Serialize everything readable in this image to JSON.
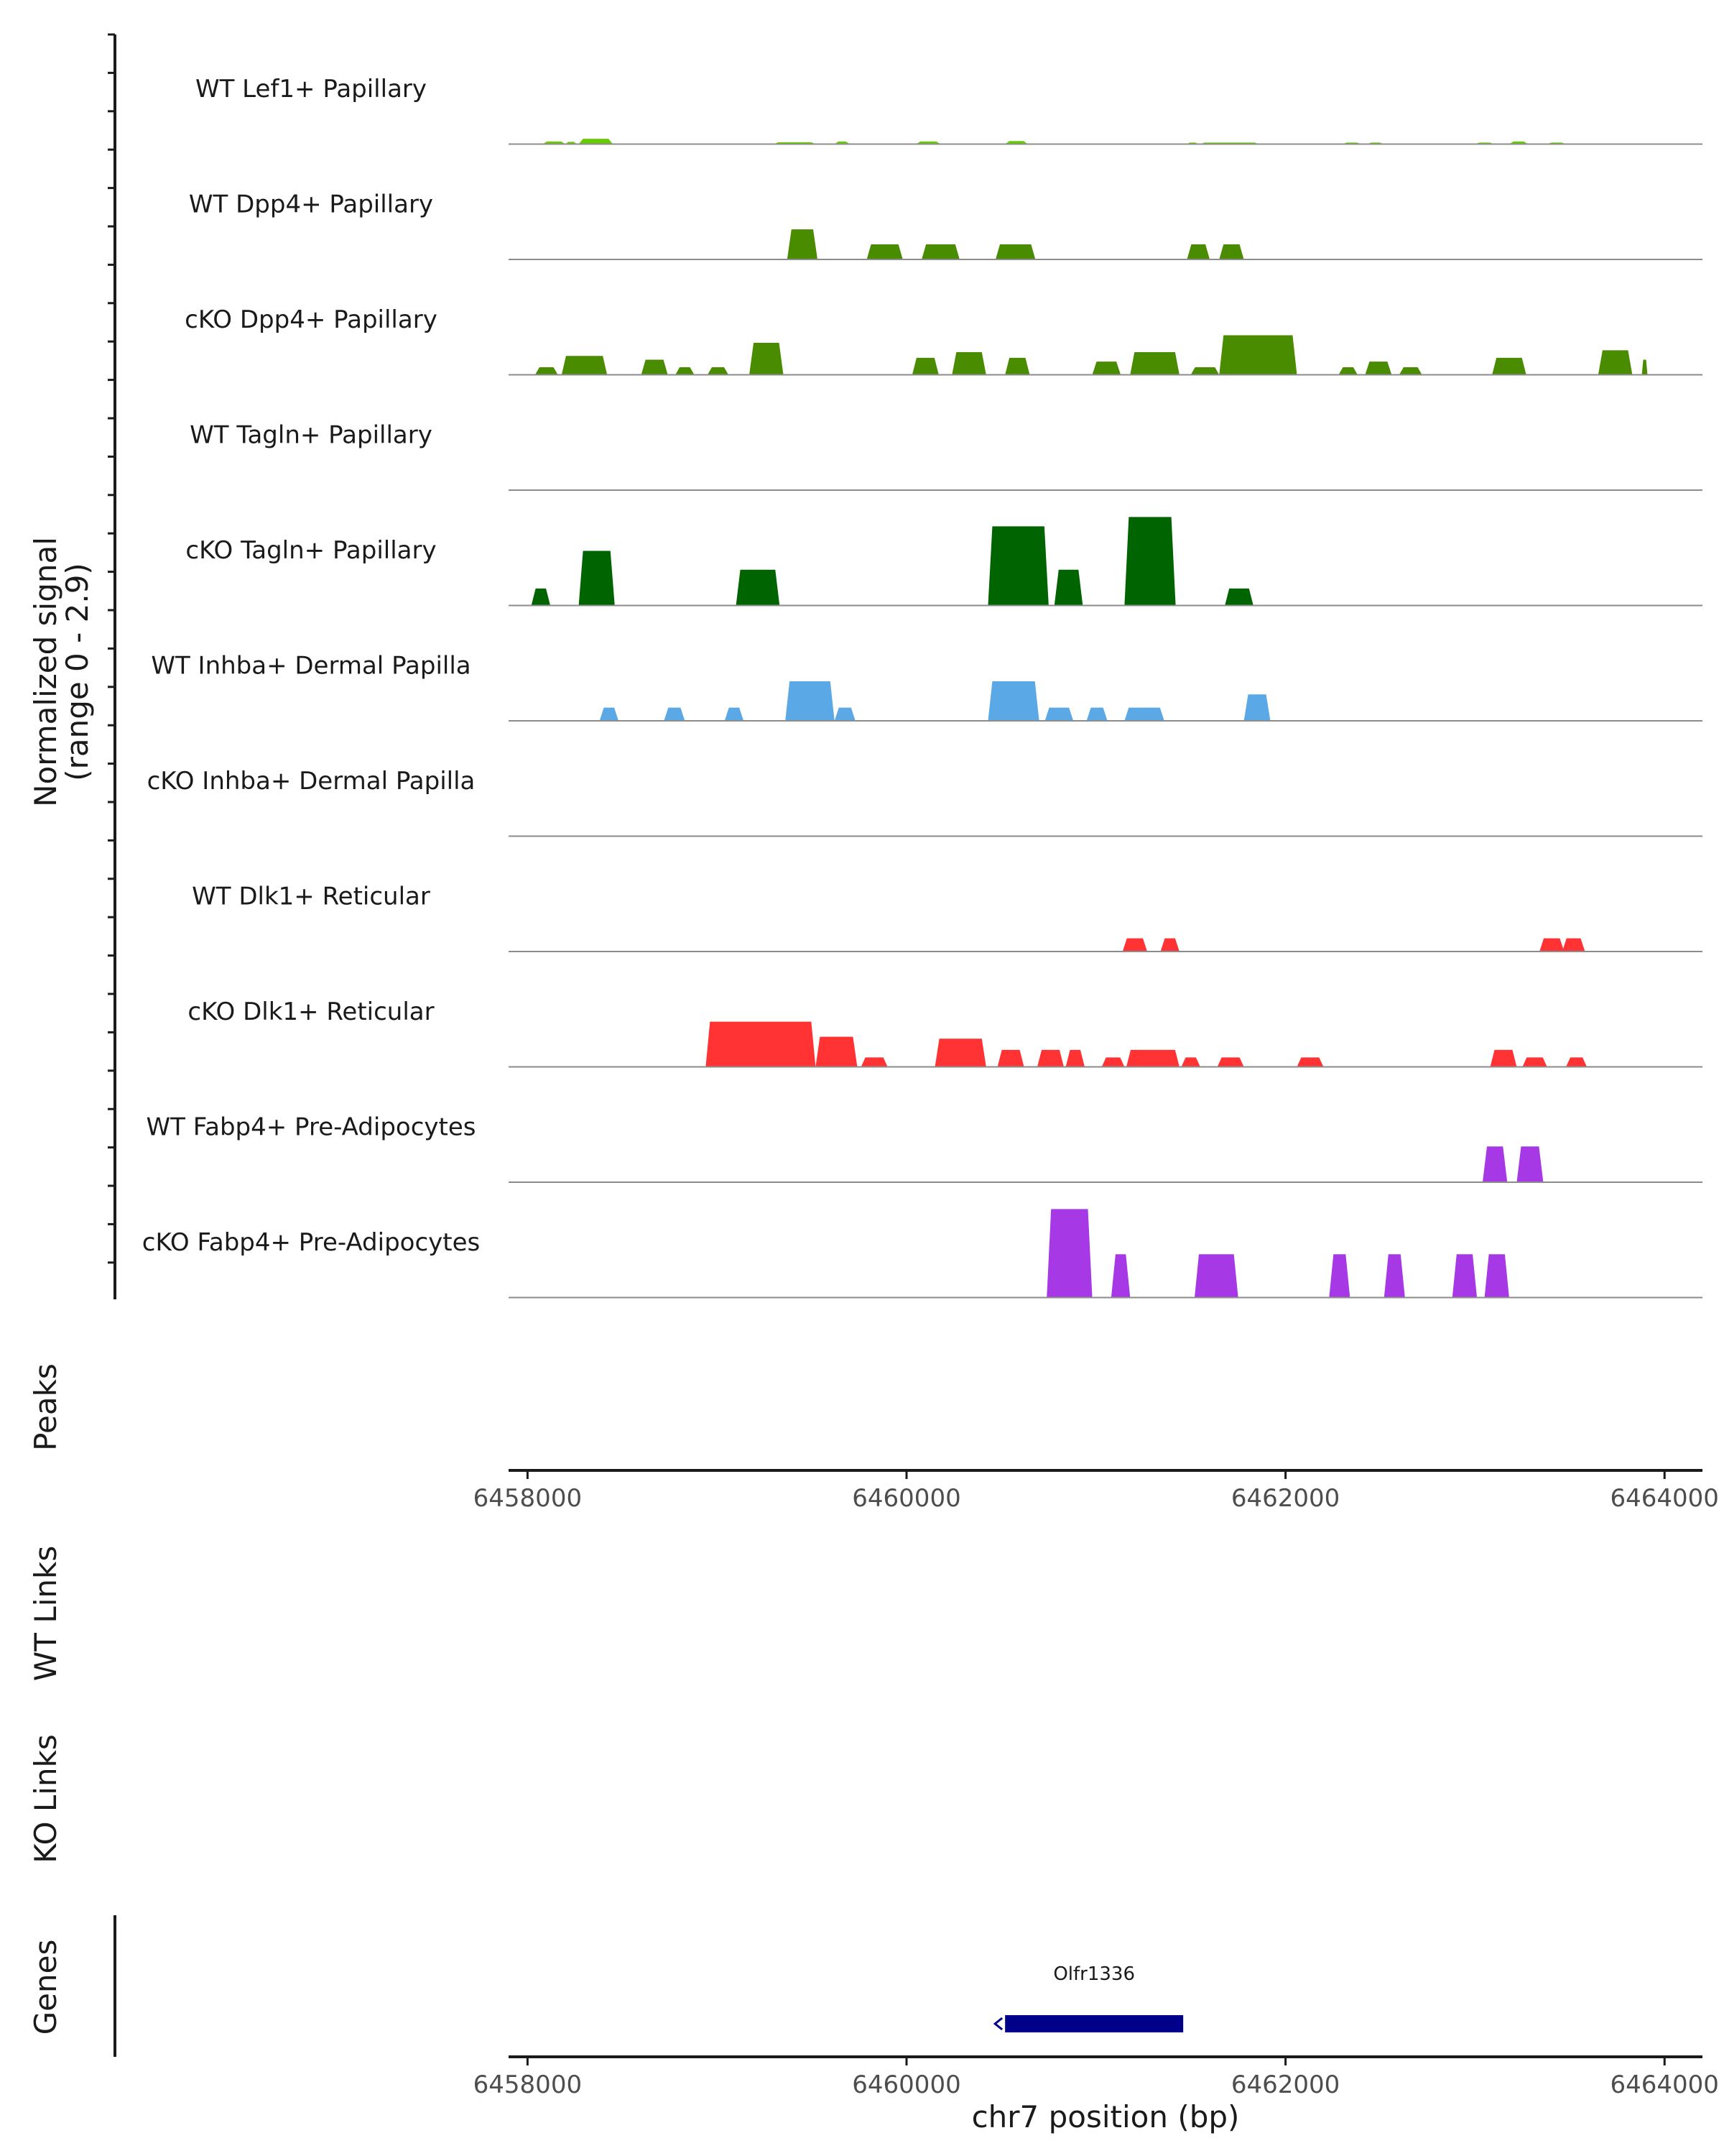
{
  "chart_data": {
    "type": "area",
    "chromosome": "chr7",
    "xlabel": "chr7 position (bp)",
    "xlim": [
      6457900,
      6464200
    ],
    "x_ticks": [
      6458000,
      6460000,
      6462000,
      6464000
    ],
    "y_range": [
      0,
      2.9
    ],
    "y_axis_label": "Normalized signal",
    "y_axis_sublabel": "(range 0 - 2.9)",
    "side_labels": {
      "peaks": "Peaks",
      "wt_links": "WT Links",
      "ko_links": "KO Links",
      "genes": "Genes"
    },
    "gene": {
      "name": "Olfr1336",
      "start": 6460520,
      "end": 6461460,
      "strand": "-",
      "color": "#00008b"
    },
    "series": [
      {
        "name": "WT Lef1+ Papillary",
        "color": "#66cc00",
        "regions": [
          {
            "start": 6458080,
            "end": 6458200,
            "h": 0.07
          },
          {
            "start": 6458200,
            "end": 6458260,
            "h": 0.06
          },
          {
            "start": 6458270,
            "end": 6458450,
            "h": 0.14
          },
          {
            "start": 6459300,
            "end": 6459520,
            "h": 0.05
          },
          {
            "start": 6459620,
            "end": 6459700,
            "h": 0.07
          },
          {
            "start": 6460050,
            "end": 6460180,
            "h": 0.07
          },
          {
            "start": 6460520,
            "end": 6460640,
            "h": 0.08
          },
          {
            "start": 6461480,
            "end": 6461540,
            "h": 0.04
          },
          {
            "start": 6461550,
            "end": 6461860,
            "h": 0.04
          },
          {
            "start": 6462300,
            "end": 6462400,
            "h": 0.04
          },
          {
            "start": 6462430,
            "end": 6462520,
            "h": 0.04
          },
          {
            "start": 6463000,
            "end": 6463100,
            "h": 0.04
          },
          {
            "start": 6463180,
            "end": 6463280,
            "h": 0.07
          },
          {
            "start": 6463380,
            "end": 6463480,
            "h": 0.04
          }
        ]
      },
      {
        "name": "WT Dpp4+ Papillary",
        "color": "#4a8c00",
        "regions": [
          {
            "start": 6459370,
            "end": 6459530,
            "h": 0.8
          },
          {
            "start": 6459790,
            "end": 6459980,
            "h": 0.4
          },
          {
            "start": 6460080,
            "end": 6460280,
            "h": 0.4
          },
          {
            "start": 6460470,
            "end": 6460680,
            "h": 0.4
          },
          {
            "start": 6461480,
            "end": 6461600,
            "h": 0.4
          },
          {
            "start": 6461650,
            "end": 6461780,
            "h": 0.4
          }
        ]
      },
      {
        "name": "cKO Dpp4+ Papillary",
        "color": "#4a8c00",
        "regions": [
          {
            "start": 6458040,
            "end": 6458160,
            "h": 0.2
          },
          {
            "start": 6458180,
            "end": 6458420,
            "h": 0.5
          },
          {
            "start": 6458600,
            "end": 6458740,
            "h": 0.4
          },
          {
            "start": 6458780,
            "end": 6458880,
            "h": 0.2
          },
          {
            "start": 6458950,
            "end": 6459060,
            "h": 0.2
          },
          {
            "start": 6459170,
            "end": 6459350,
            "h": 0.85
          },
          {
            "start": 6460030,
            "end": 6460170,
            "h": 0.45
          },
          {
            "start": 6460240,
            "end": 6460420,
            "h": 0.6
          },
          {
            "start": 6460520,
            "end": 6460650,
            "h": 0.45
          },
          {
            "start": 6460980,
            "end": 6461130,
            "h": 0.35
          },
          {
            "start": 6461180,
            "end": 6461440,
            "h": 0.6
          },
          {
            "start": 6461500,
            "end": 6461650,
            "h": 0.2
          },
          {
            "start": 6461650,
            "end": 6462060,
            "h": 1.05
          },
          {
            "start": 6462280,
            "end": 6462380,
            "h": 0.2
          },
          {
            "start": 6462420,
            "end": 6462560,
            "h": 0.35
          },
          {
            "start": 6462600,
            "end": 6462720,
            "h": 0.2
          },
          {
            "start": 6463090,
            "end": 6463270,
            "h": 0.45
          },
          {
            "start": 6463650,
            "end": 6463830,
            "h": 0.65
          },
          {
            "start": 6463880,
            "end": 6463910,
            "h": 0.4
          }
        ]
      },
      {
        "name": "WT Tagln+ Papillary",
        "color": "#006400",
        "regions": []
      },
      {
        "name": "cKO Tagln+ Papillary",
        "color": "#006400",
        "regions": [
          {
            "start": 6458020,
            "end": 6458120,
            "h": 0.45
          },
          {
            "start": 6458270,
            "end": 6458460,
            "h": 1.45
          },
          {
            "start": 6459100,
            "end": 6459330,
            "h": 0.95
          },
          {
            "start": 6460430,
            "end": 6460750,
            "h": 2.1
          },
          {
            "start": 6460780,
            "end": 6460930,
            "h": 0.95
          },
          {
            "start": 6461150,
            "end": 6461420,
            "h": 2.35
          },
          {
            "start": 6461680,
            "end": 6461830,
            "h": 0.45
          }
        ]
      },
      {
        "name": "WT Inhba+ Dermal Papilla",
        "color": "#5aa9e6",
        "regions": [
          {
            "start": 6458380,
            "end": 6458480,
            "h": 0.35
          },
          {
            "start": 6458720,
            "end": 6458830,
            "h": 0.35
          },
          {
            "start": 6459040,
            "end": 6459140,
            "h": 0.35
          },
          {
            "start": 6459360,
            "end": 6459620,
            "h": 1.05
          },
          {
            "start": 6459620,
            "end": 6459730,
            "h": 0.35
          },
          {
            "start": 6460430,
            "end": 6460700,
            "h": 1.05
          },
          {
            "start": 6460730,
            "end": 6460880,
            "h": 0.35
          },
          {
            "start": 6460950,
            "end": 6461060,
            "h": 0.35
          },
          {
            "start": 6461150,
            "end": 6461360,
            "h": 0.35
          },
          {
            "start": 6461780,
            "end": 6461920,
            "h": 0.7
          }
        ]
      },
      {
        "name": "cKO Inhba+ Dermal Papilla",
        "color": "#5aa9e6",
        "regions": []
      },
      {
        "name": "WT Dlk1+ Reticular",
        "color": "#ff3333",
        "regions": [
          {
            "start": 6461140,
            "end": 6461270,
            "h": 0.35
          },
          {
            "start": 6461340,
            "end": 6461440,
            "h": 0.35
          },
          {
            "start": 6463340,
            "end": 6463470,
            "h": 0.35
          },
          {
            "start": 6463460,
            "end": 6463580,
            "h": 0.35
          }
        ]
      },
      {
        "name": "cKO Dlk1+ Reticular",
        "color": "#ff3333",
        "regions": [
          {
            "start": 6458940,
            "end": 6459520,
            "h": 1.2
          },
          {
            "start": 6459520,
            "end": 6459740,
            "h": 0.8
          },
          {
            "start": 6459760,
            "end": 6459900,
            "h": 0.25
          },
          {
            "start": 6460150,
            "end": 6460420,
            "h": 0.75
          },
          {
            "start": 6460480,
            "end": 6460620,
            "h": 0.45
          },
          {
            "start": 6460690,
            "end": 6460830,
            "h": 0.45
          },
          {
            "start": 6460840,
            "end": 6460940,
            "h": 0.45
          },
          {
            "start": 6461030,
            "end": 6461150,
            "h": 0.25
          },
          {
            "start": 6461160,
            "end": 6461440,
            "h": 0.45
          },
          {
            "start": 6461450,
            "end": 6461550,
            "h": 0.25
          },
          {
            "start": 6461640,
            "end": 6461780,
            "h": 0.25
          },
          {
            "start": 6462060,
            "end": 6462200,
            "h": 0.25
          },
          {
            "start": 6463080,
            "end": 6463220,
            "h": 0.45
          },
          {
            "start": 6463250,
            "end": 6463380,
            "h": 0.25
          },
          {
            "start": 6463480,
            "end": 6463590,
            "h": 0.25
          }
        ]
      },
      {
        "name": "WT Fabp4+ Pre-Adipocytes",
        "color": "#a738e6",
        "regions": [
          {
            "start": 6463040,
            "end": 6463170,
            "h": 0.95
          },
          {
            "start": 6463220,
            "end": 6463360,
            "h": 0.95
          }
        ]
      },
      {
        "name": "cKO Fabp4+ Pre-Adipocytes",
        "color": "#a738e6",
        "regions": [
          {
            "start": 6460740,
            "end": 6460980,
            "h": 2.35
          },
          {
            "start": 6461080,
            "end": 6461180,
            "h": 1.15
          },
          {
            "start": 6461520,
            "end": 6461750,
            "h": 1.15
          },
          {
            "start": 6462230,
            "end": 6462340,
            "h": 1.15
          },
          {
            "start": 6462520,
            "end": 6462630,
            "h": 1.15
          },
          {
            "start": 6462880,
            "end": 6463010,
            "h": 1.15
          },
          {
            "start": 6463050,
            "end": 6463180,
            "h": 1.15
          }
        ]
      }
    ]
  }
}
